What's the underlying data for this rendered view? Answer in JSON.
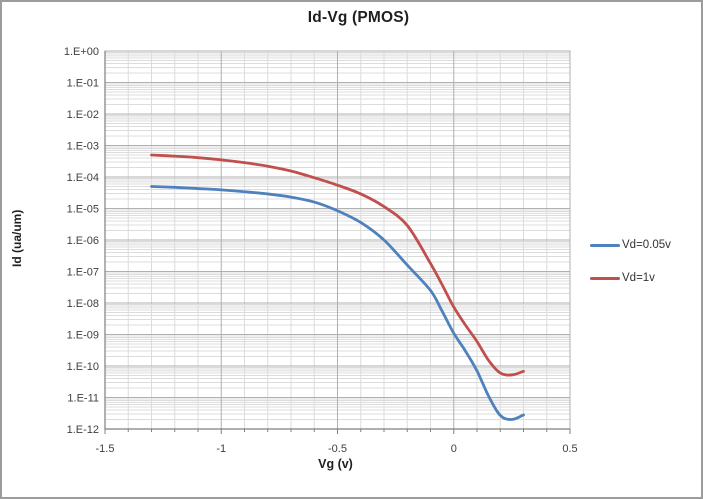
{
  "chart_data": {
    "type": "line",
    "title": "Id-Vg (PMOS)",
    "xlabel": "Vg (v)",
    "ylabel": "Id (ua/um)",
    "xlim": [
      -1.5,
      0.5
    ],
    "x_major_step": 0.5,
    "x_minor_step": 0.1,
    "y_scale": "log",
    "ylim": [
      1e-12,
      1
    ],
    "y_decades": 12,
    "grid": "major and log-minor gridlines on",
    "legend_position": "right",
    "x_ticks": [
      -1.5,
      -1,
      -0.5,
      0,
      0.5
    ],
    "x_tick_labels": [
      "-1.5",
      "-1",
      "-0.5",
      "0",
      "0.5"
    ],
    "y_tick_labels": [
      "1.E+00",
      "1.E-01",
      "1.E-02",
      "1.E-03",
      "1.E-04",
      "1.E-05",
      "1.E-06",
      "1.E-07",
      "1.E-08",
      "1.E-09",
      "1.E-10",
      "1.E-11",
      "1.E-12"
    ],
    "colors": {
      "grid_minor": "#dcdcdc",
      "grid_major": "#b0b0b0",
      "axis": "#7f7f7f",
      "tick_text": "#404040"
    },
    "series": [
      {
        "name": "Vd=0.05v",
        "color": "#4F81BD",
        "x": [
          -1.3,
          -1.2,
          -1.1,
          -1.0,
          -0.9,
          -0.8,
          -0.7,
          -0.6,
          -0.5,
          -0.4,
          -0.3,
          -0.2,
          -0.1,
          -0.05,
          0.0,
          0.05,
          0.1,
          0.15,
          0.2,
          0.25,
          0.3
        ],
        "y": [
          5e-05,
          4.7e-05,
          4.3e-05,
          3.9e-05,
          3.4e-05,
          2.9e-05,
          2.3e-05,
          1.6e-05,
          8.5e-06,
          3.6e-06,
          1e-06,
          1.6e-07,
          2.5e-08,
          5.5e-09,
          1.1e-09,
          3e-10,
          7e-11,
          1.1e-11,
          2.7e-12,
          2e-12,
          2.8e-12
        ]
      },
      {
        "name": "Vd=1v",
        "color": "#C0504D",
        "x": [
          -1.3,
          -1.2,
          -1.1,
          -1.0,
          -0.9,
          -0.8,
          -0.7,
          -0.6,
          -0.5,
          -0.4,
          -0.3,
          -0.2,
          -0.1,
          -0.05,
          0.0,
          0.05,
          0.1,
          0.15,
          0.2,
          0.25,
          0.3
        ],
        "y": [
          0.0005,
          0.00046,
          0.00041,
          0.00035,
          0.000285,
          0.00022,
          0.000155,
          9.5e-05,
          5.5e-05,
          2.9e-05,
          1.15e-05,
          2.9e-06,
          1.8e-07,
          3.8e-08,
          7.5e-09,
          2e-09,
          6e-10,
          1.5e-10,
          6e-11,
          5.2e-11,
          6.8e-11
        ]
      }
    ]
  }
}
